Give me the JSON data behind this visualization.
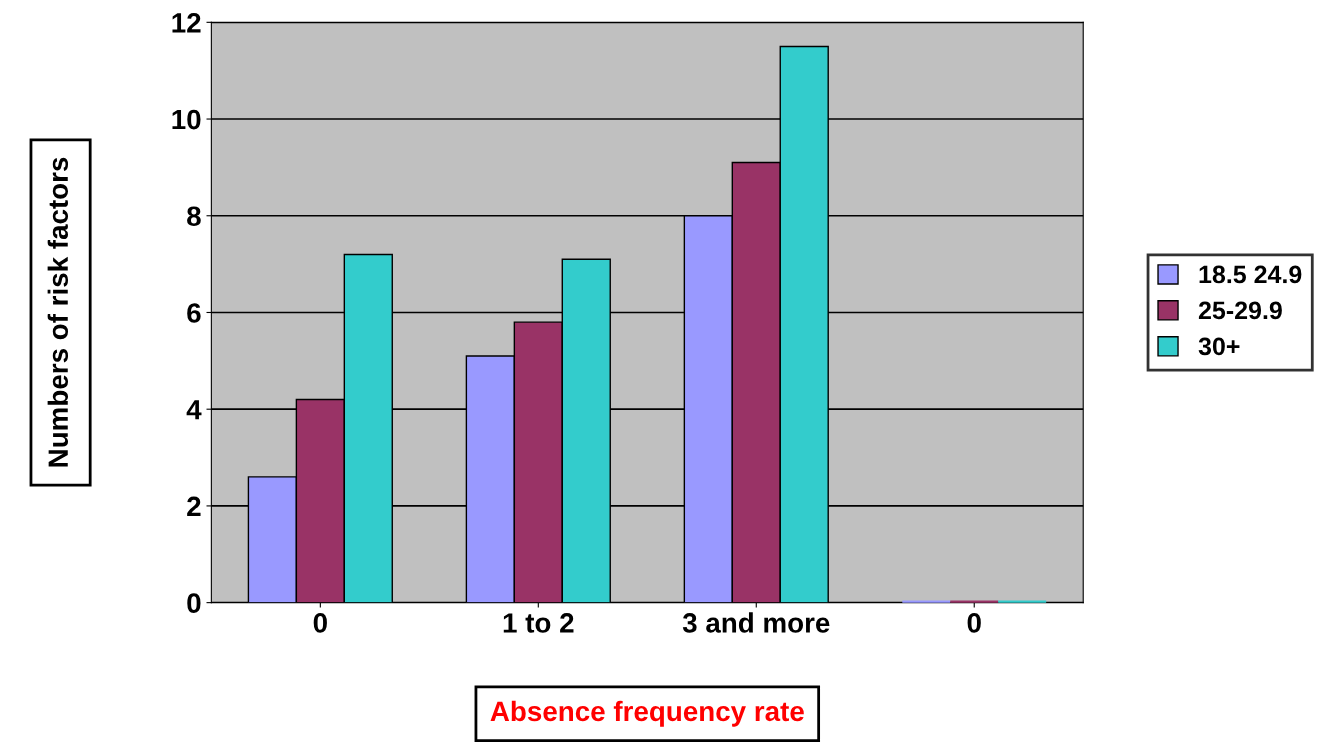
{
  "chart_data": {
    "type": "bar",
    "xlabel": "Absence frequency rate",
    "ylabel": "Numbers of risk factors",
    "categories": [
      "0",
      "1 to 2",
      "3 and more",
      "0"
    ],
    "series": [
      {
        "name": "18.5 24.9",
        "color": "#9999ff",
        "values": [
          2.6,
          5.1,
          8.0,
          0
        ]
      },
      {
        "name": "25-29.9",
        "color": "#993366",
        "values": [
          4.2,
          5.8,
          9.1,
          0
        ]
      },
      {
        "name": "30+",
        "color": "#33cccc",
        "values": [
          7.2,
          7.1,
          11.5,
          0
        ]
      }
    ],
    "ylim": [
      0,
      12
    ],
    "yticks": [
      0,
      2,
      4,
      6,
      8,
      10,
      12
    ],
    "grid": "y",
    "legend": "right"
  }
}
